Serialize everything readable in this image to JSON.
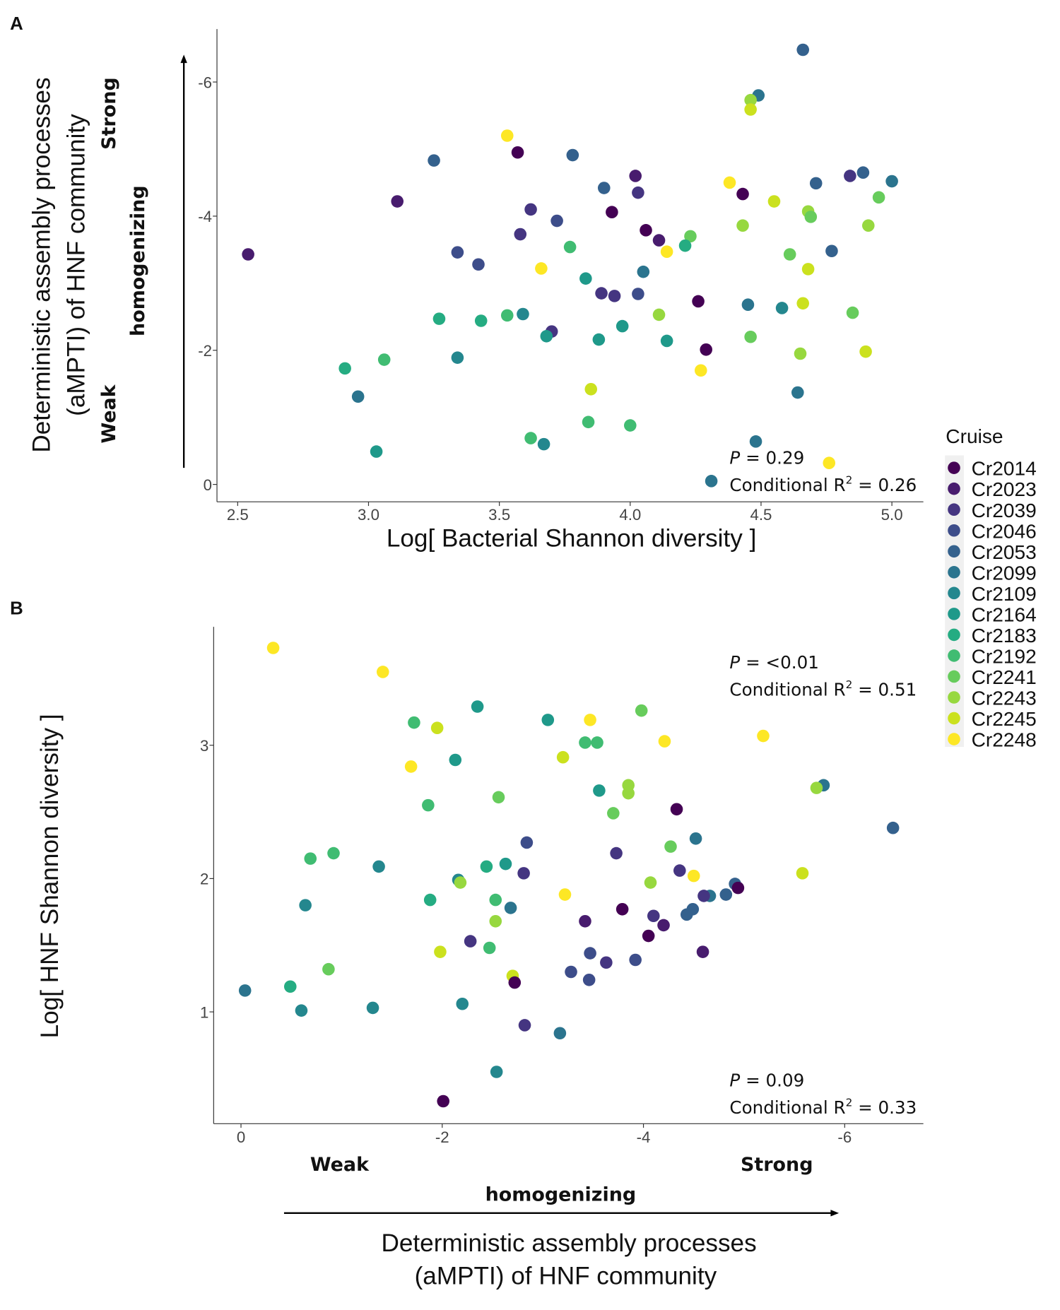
{
  "chart_data": [
    {
      "panel": "A",
      "type": "scatter",
      "xlabel": "Log[ Bacterial Shannon diversity ]",
      "ylabel": [
        "Deterministic assembly processes",
        "(aMPTI) of HNF community"
      ],
      "y_annotations": {
        "strong": "Strong",
        "middle": "homogenizing",
        "weak": "Weak"
      },
      "xlim": [
        2.45,
        5.12
      ],
      "ylim": [
        0.25,
        -7.0
      ],
      "y_reversed": true,
      "xticks": [
        2.5,
        3.0,
        3.5,
        4.0,
        4.5,
        5.0
      ],
      "xtick_labels": [
        "2.5",
        "3.0",
        "3.5",
        "4.0",
        "4.5",
        "5.0"
      ],
      "yticks": [
        0,
        -2,
        -4,
        -6
      ],
      "ytick_labels": [
        "0",
        "-2",
        "-4",
        "-6"
      ],
      "stats": {
        "p_label": "P",
        "p_value": " = 0.29",
        "r2_prefix": "Conditional R",
        "r2_value": " = 0.26"
      },
      "points": [
        [
          2.54,
          -3.43,
          1
        ],
        [
          3.53,
          -5.2,
          13
        ],
        [
          3.57,
          -4.95,
          0
        ],
        [
          3.25,
          -4.83,
          4
        ],
        [
          3.78,
          -4.91,
          4
        ],
        [
          3.11,
          -4.22,
          1
        ],
        [
          3.62,
          -4.1,
          2
        ],
        [
          3.58,
          -3.73,
          2
        ],
        [
          3.72,
          -3.93,
          3
        ],
        [
          3.34,
          -3.46,
          3
        ],
        [
          3.42,
          -3.28,
          3
        ],
        [
          3.77,
          -3.54,
          9
        ],
        [
          3.66,
          -3.22,
          13
        ],
        [
          3.83,
          -3.07,
          7
        ],
        [
          3.9,
          -4.42,
          4
        ],
        [
          4.02,
          -4.6,
          1
        ],
        [
          4.03,
          -4.35,
          2
        ],
        [
          3.93,
          -4.06,
          0
        ],
        [
          4.06,
          -3.79,
          0
        ],
        [
          4.11,
          -3.64,
          1
        ],
        [
          4.14,
          -3.47,
          13
        ],
        [
          4.05,
          -3.17,
          5
        ],
        [
          4.23,
          -3.7,
          10
        ],
        [
          4.21,
          -3.56,
          8
        ],
        [
          3.89,
          -2.85,
          2
        ],
        [
          3.94,
          -2.81,
          2
        ],
        [
          4.03,
          -2.84,
          3
        ],
        [
          4.26,
          -2.73,
          0
        ],
        [
          4.38,
          -4.5,
          13
        ],
        [
          4.43,
          -4.33,
          0
        ],
        [
          4.49,
          -5.8,
          5
        ],
        [
          4.46,
          -5.73,
          11
        ],
        [
          4.46,
          -5.59,
          12
        ],
        [
          4.66,
          -6.48,
          4
        ],
        [
          4.55,
          -4.22,
          12
        ],
        [
          4.43,
          -3.86,
          11
        ],
        [
          4.68,
          -4.07,
          11
        ],
        [
          4.69,
          -3.99,
          10
        ],
        [
          4.71,
          -4.49,
          4
        ],
        [
          4.61,
          -3.43,
          10
        ],
        [
          4.68,
          -3.21,
          12
        ],
        [
          4.77,
          -3.48,
          4
        ],
        [
          4.84,
          -4.6,
          2
        ],
        [
          4.89,
          -4.65,
          4
        ],
        [
          5.0,
          -4.52,
          5
        ],
        [
          4.95,
          -4.28,
          10
        ],
        [
          4.91,
          -3.86,
          11
        ],
        [
          4.66,
          -2.7,
          12
        ],
        [
          4.58,
          -2.63,
          6
        ],
        [
          4.45,
          -2.68,
          5
        ],
        [
          4.85,
          -2.56,
          10
        ],
        [
          3.27,
          -2.47,
          8
        ],
        [
          3.43,
          -2.44,
          8
        ],
        [
          3.53,
          -2.52,
          9
        ],
        [
          3.59,
          -2.54,
          6
        ],
        [
          3.7,
          -2.28,
          2
        ],
        [
          3.68,
          -2.21,
          7
        ],
        [
          3.88,
          -2.16,
          7
        ],
        [
          3.97,
          -2.36,
          7
        ],
        [
          4.11,
          -2.53,
          11
        ],
        [
          4.14,
          -2.14,
          7
        ],
        [
          4.29,
          -2.01,
          0
        ],
        [
          4.46,
          -2.2,
          10
        ],
        [
          4.65,
          -1.95,
          11
        ],
        [
          4.9,
          -1.98,
          12
        ],
        [
          4.27,
          -1.7,
          13
        ],
        [
          3.85,
          -1.42,
          12
        ],
        [
          4.64,
          -1.37,
          5
        ],
        [
          2.91,
          -1.73,
          8
        ],
        [
          2.96,
          -1.31,
          5
        ],
        [
          3.06,
          -1.86,
          9
        ],
        [
          3.34,
          -1.89,
          6
        ],
        [
          3.03,
          -0.49,
          7
        ],
        [
          3.62,
          -0.69,
          9
        ],
        [
          3.67,
          -0.6,
          6
        ],
        [
          3.84,
          -0.93,
          9
        ],
        [
          4.0,
          -0.88,
          9
        ],
        [
          4.48,
          -0.64,
          5
        ],
        [
          4.76,
          -0.32,
          13
        ],
        [
          4.31,
          -0.05,
          5
        ]
      ]
    },
    {
      "panel": "B",
      "type": "scatter",
      "xlabel": [
        "Deterministic assembly processes",
        "(aMPTI) of HNF community"
      ],
      "ylabel": "Log[ HNF Shannon diversity ]",
      "x_annotations": {
        "weak": "Weak",
        "strong": "Strong",
        "middle": "homogenizing"
      },
      "xlim": [
        0.27,
        -6.8
      ],
      "x_reversed": true,
      "ylim": [
        0.22,
        4.0
      ],
      "xticks": [
        0,
        -2,
        -4,
        -6
      ],
      "xtick_labels": [
        "0",
        "-2",
        "-4",
        "-6"
      ],
      "yticks": [
        1,
        2,
        3
      ],
      "ytick_labels": [
        "1",
        "2",
        "3"
      ],
      "stats_top": {
        "p_label": "P",
        "p_value": " = <0.01",
        "r2_prefix": "Conditional R",
        "r2_value": " = 0.51"
      },
      "stats_bottom": {
        "p_label": "P",
        "p_value": " = 0.09",
        "r2_prefix": "Conditional R",
        "r2_value": " = 0.33"
      },
      "points": [
        [
          -0.32,
          3.73,
          13
        ],
        [
          -1.41,
          3.55,
          13
        ],
        [
          -2.35,
          3.29,
          7
        ],
        [
          -1.72,
          3.17,
          9
        ],
        [
          -1.95,
          3.13,
          12
        ],
        [
          -3.05,
          3.19,
          7
        ],
        [
          -3.47,
          3.19,
          13
        ],
        [
          -3.98,
          3.26,
          10
        ],
        [
          -3.42,
          3.02,
          9
        ],
        [
          -3.54,
          3.02,
          9
        ],
        [
          -4.21,
          3.03,
          13
        ],
        [
          -5.19,
          3.07,
          13
        ],
        [
          -3.2,
          2.91,
          12
        ],
        [
          -1.69,
          2.84,
          13
        ],
        [
          -2.13,
          2.89,
          7
        ],
        [
          -5.79,
          2.7,
          5
        ],
        [
          -5.72,
          2.68,
          11
        ],
        [
          -3.56,
          2.66,
          7
        ],
        [
          -3.85,
          2.7,
          11
        ],
        [
          -3.85,
          2.64,
          11
        ],
        [
          -2.56,
          2.61,
          10
        ],
        [
          -3.7,
          2.49,
          10
        ],
        [
          -1.86,
          2.55,
          9
        ],
        [
          -4.33,
          2.52,
          0
        ],
        [
          -6.48,
          2.38,
          4
        ],
        [
          -4.52,
          2.3,
          5
        ],
        [
          -4.27,
          2.24,
          10
        ],
        [
          -2.84,
          2.27,
          3
        ],
        [
          -3.73,
          2.19,
          2
        ],
        [
          -0.69,
          2.15,
          9
        ],
        [
          -0.92,
          2.19,
          9
        ],
        [
          -1.37,
          2.09,
          6
        ],
        [
          -2.44,
          2.09,
          8
        ],
        [
          -2.63,
          2.11,
          7
        ],
        [
          -2.81,
          2.04,
          2
        ],
        [
          -2.16,
          1.99,
          6
        ],
        [
          -2.18,
          1.97,
          11
        ],
        [
          -4.36,
          2.06,
          2
        ],
        [
          -4.5,
          2.02,
          13
        ],
        [
          -5.58,
          2.04,
          12
        ],
        [
          -4.07,
          1.97,
          11
        ],
        [
          -4.91,
          1.96,
          4
        ],
        [
          -4.94,
          1.93,
          0
        ],
        [
          -4.82,
          1.88,
          4
        ],
        [
          -4.66,
          1.87,
          5
        ],
        [
          -4.6,
          1.87,
          2
        ],
        [
          -0.64,
          1.8,
          6
        ],
        [
          -1.88,
          1.84,
          8
        ],
        [
          -2.53,
          1.84,
          9
        ],
        [
          -3.22,
          1.88,
          13
        ],
        [
          -2.68,
          1.78,
          5
        ],
        [
          -3.79,
          1.77,
          0
        ],
        [
          -4.49,
          1.77,
          4
        ],
        [
          -4.43,
          1.73,
          4
        ],
        [
          -4.1,
          1.72,
          2
        ],
        [
          -4.2,
          1.65,
          1
        ],
        [
          -2.53,
          1.68,
          11
        ],
        [
          -3.42,
          1.68,
          1
        ],
        [
          -4.05,
          1.57,
          0
        ],
        [
          -2.28,
          1.53,
          2
        ],
        [
          -2.47,
          1.48,
          9
        ],
        [
          -1.98,
          1.45,
          12
        ],
        [
          -3.47,
          1.44,
          3
        ],
        [
          -4.59,
          1.45,
          1
        ],
        [
          -3.63,
          1.37,
          2
        ],
        [
          -3.92,
          1.39,
          3
        ],
        [
          -0.87,
          1.32,
          10
        ],
        [
          -3.28,
          1.3,
          3
        ],
        [
          -2.7,
          1.27,
          12
        ],
        [
          -2.72,
          1.22,
          0
        ],
        [
          -3.46,
          1.24,
          3
        ],
        [
          -0.04,
          1.16,
          5
        ],
        [
          -0.49,
          1.19,
          8
        ],
        [
          -0.6,
          1.01,
          6
        ],
        [
          -1.31,
          1.03,
          6
        ],
        [
          -2.2,
          1.06,
          6
        ],
        [
          -2.82,
          0.9,
          2
        ],
        [
          -3.17,
          0.84,
          5
        ],
        [
          -2.54,
          0.55,
          6
        ],
        [
          -2.01,
          0.33,
          0
        ]
      ]
    }
  ],
  "panel_labels": [
    "A",
    "B"
  ],
  "legend": {
    "title": "Cruise",
    "items": [
      {
        "label": "Cr2014",
        "color": "#440154"
      },
      {
        "label": "Cr2023",
        "color": "#481C6E"
      },
      {
        "label": "Cr2039",
        "color": "#453581"
      },
      {
        "label": "Cr2046",
        "color": "#3D4D8A"
      },
      {
        "label": "Cr2053",
        "color": "#34618D"
      },
      {
        "label": "Cr2099",
        "color": "#2B748E"
      },
      {
        "label": "Cr2109",
        "color": "#24878E"
      },
      {
        "label": "Cr2164",
        "color": "#1F998A"
      },
      {
        "label": "Cr2183",
        "color": "#25AC82"
      },
      {
        "label": "Cr2192",
        "color": "#40BC72"
      },
      {
        "label": "Cr2241",
        "color": "#67CC5C"
      },
      {
        "label": "Cr2243",
        "color": "#97D83F"
      },
      {
        "label": "Cr2245",
        "color": "#CBE11E"
      },
      {
        "label": "Cr2248",
        "color": "#FDE725"
      }
    ]
  }
}
